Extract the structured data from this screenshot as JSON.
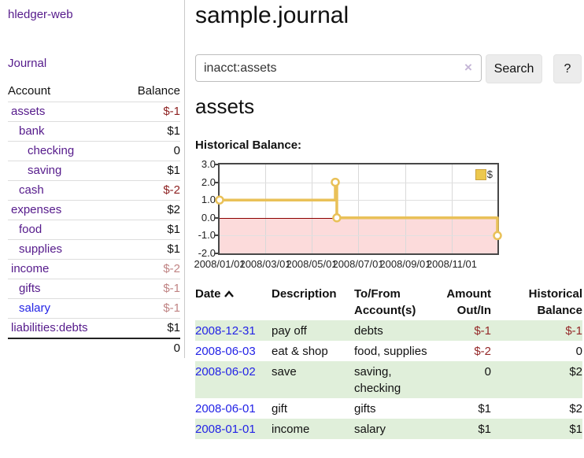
{
  "app": {
    "brand": "hledger-web",
    "nav_journal": "Journal"
  },
  "sidebar": {
    "header": {
      "account": "Account",
      "balance": "Balance"
    },
    "accounts": [
      {
        "name": "assets",
        "balance": "$-1"
      },
      {
        "name": "bank",
        "balance": "$1"
      },
      {
        "name": "checking",
        "balance": "0"
      },
      {
        "name": "saving",
        "balance": "$1"
      },
      {
        "name": "cash",
        "balance": "$-2"
      },
      {
        "name": "expenses",
        "balance": "$2"
      },
      {
        "name": "food",
        "balance": "$1"
      },
      {
        "name": "supplies",
        "balance": "$1"
      },
      {
        "name": "income",
        "balance": "$-2"
      },
      {
        "name": "gifts",
        "balance": "$-1"
      },
      {
        "name": "salary",
        "balance": "$-1"
      },
      {
        "name": "liabilities:debts",
        "balance": "$1"
      }
    ],
    "total": "0"
  },
  "main": {
    "title": "sample.journal",
    "search": {
      "value": "inacct:assets",
      "clear_icon": "×",
      "button_label": "Search",
      "help_label": "?"
    },
    "account_heading": "assets",
    "chart_caption": "Historical Balance:"
  },
  "chart_data": {
    "type": "line",
    "step": "step-after",
    "title": "Historical Balance",
    "series": [
      {
        "name": "$",
        "points": [
          [
            "2008-01-01",
            1
          ],
          [
            "2008-06-01",
            2
          ],
          [
            "2008-06-03",
            0
          ],
          [
            "2008-12-31",
            -1
          ]
        ]
      }
    ],
    "x_range": [
      "2008-01-01",
      "2008-12-31"
    ],
    "ylim": [
      -2,
      3
    ],
    "y_ticks": [
      3,
      2,
      1,
      0,
      -1,
      -2
    ],
    "y_tick_labels": [
      "3.0",
      "2.0",
      "1.0",
      "0.0",
      "-1.0",
      "-2.0"
    ],
    "x_ticks": [
      "2008-01-01",
      "2008-03-01",
      "2008-05-01",
      "2008-07-01",
      "2008-09-01",
      "2008-11-01"
    ],
    "x_tick_labels": [
      "2008/01/01",
      "2008/03/01",
      "2008/05/01",
      "2008/07/01",
      "2008/09/01",
      "2008/11/01"
    ],
    "legend_position": "top-right",
    "grid": true,
    "colors": {
      "line": "#e9c158",
      "marker_fill": "#ffffff",
      "negative_region": "#fcdbdb",
      "zero_line": "#8b0000",
      "grid": "#d9d9d9",
      "border": "#484848",
      "legend_fill": "#ecc84e"
    }
  },
  "register": {
    "headers": {
      "date": "Date",
      "description": "Description",
      "tofrom": "To/From Account(s)",
      "amount": "Amount Out/In",
      "balance": "Historical Balance"
    },
    "rows": [
      {
        "date": "2008-12-31",
        "description": "pay off",
        "accounts": "debts",
        "amount": "$-1",
        "balance": "$-1"
      },
      {
        "date": "2008-06-03",
        "description": "eat & shop",
        "accounts": "food, supplies",
        "amount": "$-2",
        "balance": "0"
      },
      {
        "date": "2008-06-02",
        "description": "save",
        "accounts": "saving, checking",
        "amount": "0",
        "balance": "$2"
      },
      {
        "date": "2008-06-01",
        "description": "gift",
        "accounts": "gifts",
        "amount": "$1",
        "balance": "$2"
      },
      {
        "date": "2008-01-01",
        "description": "income",
        "accounts": "salary",
        "amount": "$1",
        "balance": "$1"
      }
    ]
  }
}
